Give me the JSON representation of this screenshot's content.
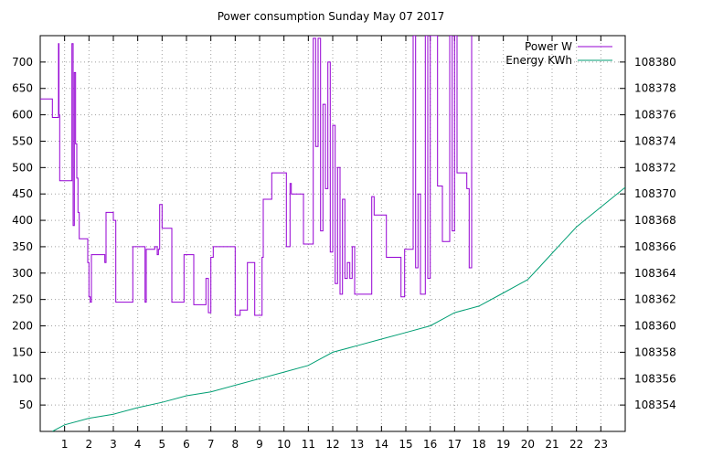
{
  "chart_data": {
    "type": "line",
    "title": "Power consumption Sunday May 07 2017",
    "xlabel": "",
    "ylabel": "",
    "y2label": "",
    "xlim": [
      0,
      24
    ],
    "ylim": [
      0,
      750
    ],
    "y2lim": [
      108352,
      108382
    ],
    "grid": true,
    "legend": "top-right",
    "x_ticks": [
      "1",
      "2",
      "3",
      "4",
      "5",
      "6",
      "7",
      "8",
      "9",
      "10",
      "11",
      "12",
      "13",
      "14",
      "15",
      "16",
      "17",
      "18",
      "19",
      "20",
      "21",
      "22",
      "23"
    ],
    "y_ticks": [
      "50",
      "100",
      "150",
      "200",
      "250",
      "300",
      "350",
      "400",
      "450",
      "500",
      "550",
      "600",
      "650",
      "700"
    ],
    "y2_ticks": [
      "108354",
      "108356",
      "108358",
      "108360",
      "108362",
      "108364",
      "108366",
      "108368",
      "108370",
      "108372",
      "108374",
      "108376",
      "108378",
      "108380"
    ],
    "series": [
      {
        "name": "Power W",
        "axis": "y1",
        "step": true,
        "color": "#9400d3",
        "x": [
          0.0,
          0.5,
          0.75,
          0.77,
          0.8,
          1.3,
          1.35,
          1.4,
          1.45,
          1.5,
          1.55,
          1.6,
          1.8,
          1.95,
          2.0,
          2.05,
          2.1,
          2.6,
          2.65,
          2.7,
          3.0,
          3.1,
          3.6,
          3.8,
          4.0,
          4.3,
          4.35,
          4.7,
          4.8,
          4.85,
          4.9,
          5.0,
          5.4,
          5.5,
          5.9,
          6.0,
          6.3,
          6.4,
          6.8,
          6.9,
          7.0,
          7.1,
          7.8,
          8.0,
          8.2,
          8.5,
          8.8,
          9.1,
          9.15,
          9.5,
          10.1,
          10.25,
          10.3,
          10.8,
          10.9,
          11.2,
          11.3,
          11.4,
          11.5,
          11.6,
          11.7,
          11.8,
          11.9,
          12.0,
          12.1,
          12.2,
          12.3,
          12.4,
          12.5,
          12.6,
          12.7,
          12.8,
          12.9,
          13.0,
          13.1,
          13.6,
          13.7,
          14.2,
          14.3,
          14.8,
          14.95,
          15.3,
          15.4,
          15.5,
          15.6,
          15.8,
          15.9,
          16.0,
          16.3,
          16.5,
          16.8,
          16.9,
          17.0,
          17.1,
          17.5,
          17.6,
          17.7
        ],
        "values": [
          630,
          595,
          735,
          600,
          475,
          735,
          390,
          680,
          545,
          480,
          415,
          365,
          365,
          320,
          255,
          245,
          335,
          335,
          320,
          415,
          400,
          245,
          245,
          350,
          350,
          245,
          345,
          350,
          335,
          345,
          430,
          385,
          245,
          245,
          335,
          335,
          240,
          240,
          290,
          225,
          330,
          350,
          350,
          220,
          230,
          320,
          220,
          330,
          440,
          490,
          350,
          470,
          450,
          355,
          355,
          745,
          540,
          745,
          380,
          620,
          460,
          700,
          340,
          580,
          280,
          500,
          260,
          440,
          290,
          320,
          290,
          350,
          260,
          260,
          260,
          445,
          410,
          330,
          330,
          255,
          345,
          750,
          310,
          450,
          260,
          750,
          290,
          750,
          465,
          360,
          750,
          380,
          750,
          490,
          460,
          310,
          750
        ]
      },
      {
        "name": "Energy KWh",
        "axis": "y2",
        "step": false,
        "color": "#009e73",
        "x": [
          0.5,
          1,
          2,
          3,
          4,
          5,
          6,
          7,
          8,
          9,
          10,
          11,
          11.5,
          12,
          13,
          14,
          15,
          16,
          16.5,
          17,
          18,
          19,
          19.5,
          20,
          20.5,
          21,
          21.5,
          22,
          23,
          24
        ],
        "values": [
          108352.0,
          108352.5,
          108353.0,
          108353.3,
          108353.8,
          108354.2,
          108354.7,
          108355.0,
          108355.5,
          108356.0,
          108356.5,
          108357.0,
          108357.5,
          108358.0,
          108358.5,
          108359.0,
          108359.5,
          108360.0,
          108360.5,
          108361.0,
          108361.5,
          108362.5,
          108363.0,
          108363.5,
          108364.5,
          108365.5,
          108366.5,
          108367.5,
          108369.0,
          108370.5
        ]
      }
    ]
  }
}
